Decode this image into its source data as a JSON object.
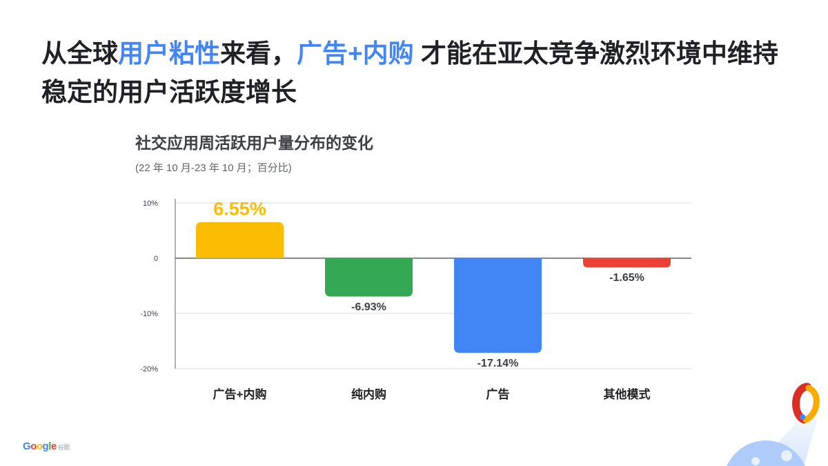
{
  "headline": {
    "part1": "从全球",
    "highlight1": "用户粘性",
    "part2": "来看，",
    "highlight2": "广告+内购",
    "part3": " 才能在亚太竞争激烈环境中维持稳定的用户活跃度增长"
  },
  "colors": {
    "highlight": "#4285f4",
    "text": "#202124"
  },
  "chart_data": {
    "type": "bar",
    "title": "社交应用周活跃用户量分布的变化",
    "subtitle": "(22 年 10 月-23 年 10 月；百分比)",
    "categories": [
      "广告+内购",
      "纯内购",
      "广告",
      "其他模式"
    ],
    "values": [
      6.55,
      -6.93,
      -17.14,
      -1.65
    ],
    "data_labels": [
      "6.55%",
      "-6.93%",
      "-17.14%",
      "-1.65%"
    ],
    "colors": [
      "#fbbc04",
      "#34a853",
      "#4285f4",
      "#ea4335"
    ],
    "yticks": [
      {
        "value": 10,
        "label": "10%"
      },
      {
        "value": 0,
        "label": "0"
      },
      {
        "value": -10,
        "label": "-10%"
      },
      {
        "value": -20,
        "label": "-20%"
      }
    ],
    "ylim": [
      -20,
      10
    ],
    "grid": true,
    "legend": "none"
  },
  "footer": {
    "logo": "Google",
    "logo_cn": "谷歌"
  }
}
